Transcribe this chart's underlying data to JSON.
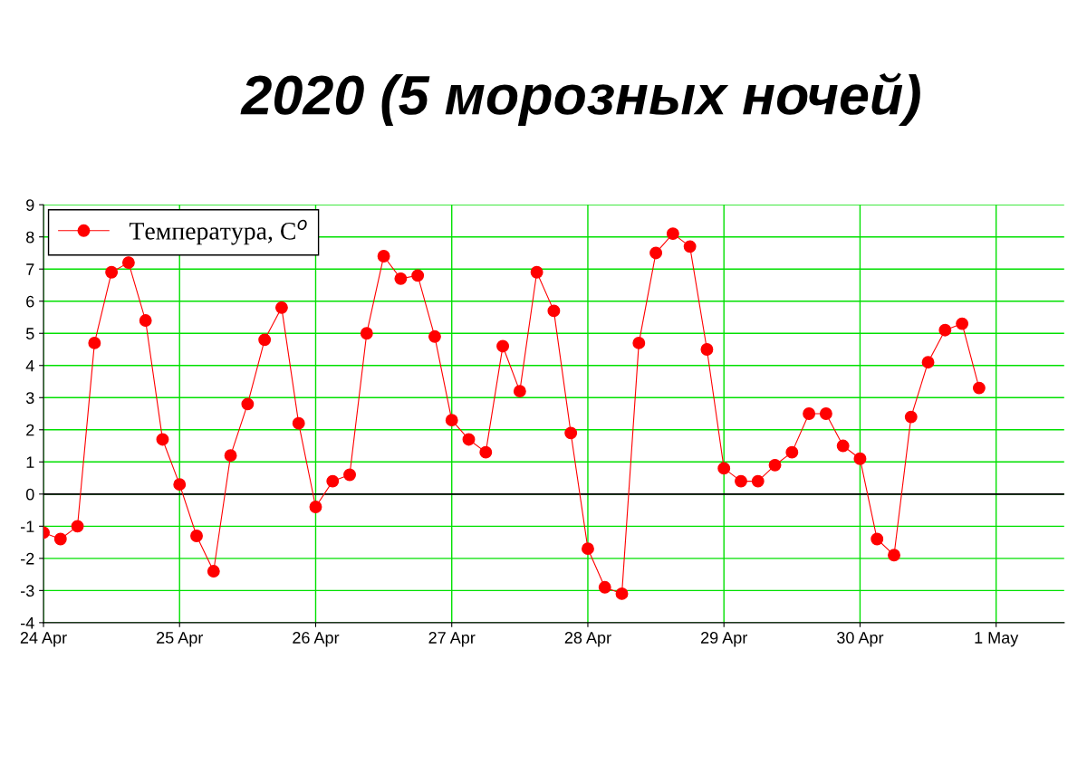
{
  "chart_data": {
    "type": "line",
    "title": "2020 (5 морозных ночей)",
    "x": [
      "2020-04-24T00:00",
      "2020-04-24T03:00",
      "2020-04-24T06:00",
      "2020-04-24T09:00",
      "2020-04-24T12:00",
      "2020-04-24T15:00",
      "2020-04-24T18:00",
      "2020-04-24T21:00",
      "2020-04-25T00:00",
      "2020-04-25T03:00",
      "2020-04-25T06:00",
      "2020-04-25T09:00",
      "2020-04-25T12:00",
      "2020-04-25T15:00",
      "2020-04-25T18:00",
      "2020-04-25T21:00",
      "2020-04-26T00:00",
      "2020-04-26T03:00",
      "2020-04-26T06:00",
      "2020-04-26T09:00",
      "2020-04-26T12:00",
      "2020-04-26T15:00",
      "2020-04-26T18:00",
      "2020-04-26T21:00",
      "2020-04-27T00:00",
      "2020-04-27T03:00",
      "2020-04-27T06:00",
      "2020-04-27T09:00",
      "2020-04-27T12:00",
      "2020-04-27T15:00",
      "2020-04-27T18:00",
      "2020-04-27T21:00",
      "2020-04-28T00:00",
      "2020-04-28T03:00",
      "2020-04-28T06:00",
      "2020-04-28T09:00",
      "2020-04-28T12:00",
      "2020-04-28T15:00",
      "2020-04-28T18:00",
      "2020-04-28T21:00",
      "2020-04-29T00:00",
      "2020-04-29T03:00",
      "2020-04-29T06:00",
      "2020-04-29T09:00",
      "2020-04-29T12:00",
      "2020-04-29T15:00",
      "2020-04-29T18:00",
      "2020-04-29T21:00",
      "2020-04-30T00:00",
      "2020-04-30T03:00",
      "2020-04-30T06:00",
      "2020-04-30T09:00",
      "2020-04-30T12:00",
      "2020-04-30T15:00",
      "2020-04-30T18:00",
      "2020-04-30T21:00"
    ],
    "series": [
      {
        "name": "Температура, C$^{o}$",
        "color": "#ff0000",
        "values": [
          -1.2,
          -1.4,
          -1.0,
          4.7,
          6.9,
          7.2,
          5.4,
          1.7,
          0.3,
          -1.3,
          -2.4,
          1.2,
          2.8,
          4.8,
          5.8,
          2.2,
          -0.4,
          0.4,
          0.6,
          5.0,
          7.4,
          6.7,
          6.8,
          4.9,
          2.3,
          1.7,
          1.3,
          4.6,
          3.2,
          6.9,
          5.7,
          1.9,
          -1.7,
          -2.9,
          -3.1,
          4.7,
          7.5,
          8.1,
          7.7,
          4.5,
          0.8,
          0.4,
          0.4,
          0.9,
          1.3,
          2.5,
          2.5,
          1.5,
          1.1,
          -1.4,
          -1.9,
          2.4,
          4.1,
          5.1,
          5.3,
          3.3
        ]
      }
    ],
    "xlim": [
      "2020-04-24T00:00",
      "2020-05-01T12:00"
    ],
    "xticks": [
      {
        "value": "2020-04-24",
        "label": "24 Apr"
      },
      {
        "value": "2020-04-25",
        "label": "25 Apr"
      },
      {
        "value": "2020-04-26",
        "label": "26 Apr"
      },
      {
        "value": "2020-04-27",
        "label": "27 Apr"
      },
      {
        "value": "2020-04-28",
        "label": "28 Apr"
      },
      {
        "value": "2020-04-29",
        "label": "29 Apr"
      },
      {
        "value": "2020-04-30",
        "label": "30 Apr"
      },
      {
        "value": "2020-05-01",
        "label": "1 May"
      }
    ],
    "ylim": [
      -4,
      9
    ],
    "yticks": [
      -4,
      -3,
      -2,
      -1,
      0,
      1,
      2,
      3,
      4,
      5,
      6,
      7,
      8,
      9
    ],
    "ref_lines": [
      {
        "axis": "y",
        "value": 0,
        "color": "#000000"
      }
    ],
    "grid": true,
    "legend": "top left",
    "marker": "circle",
    "line_style": "solid"
  }
}
